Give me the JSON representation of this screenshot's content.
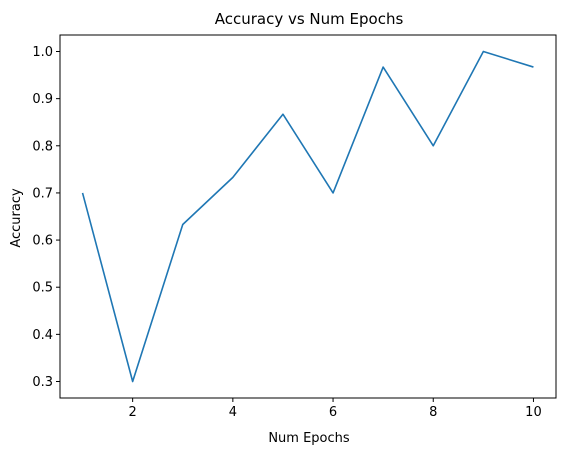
{
  "chart_data": {
    "type": "line",
    "title": "Accuracy vs Num Epochs",
    "xlabel": "Num Epochs",
    "ylabel": "Accuracy",
    "xlim": [
      0.55,
      10.45
    ],
    "ylim": [
      0.265,
      1.035
    ],
    "xticks": [
      2,
      4,
      6,
      8,
      10
    ],
    "yticks": [
      0.3,
      0.4,
      0.5,
      0.6,
      0.7,
      0.8,
      0.9,
      1.0
    ],
    "ytick_labels": [
      "0.3",
      "0.4",
      "0.5",
      "0.6",
      "0.7",
      "0.8",
      "0.9",
      "1.0"
    ],
    "grid": false,
    "series": [
      {
        "color": "#1f77b4",
        "x": [
          1,
          2,
          3,
          4,
          5,
          6,
          7,
          8,
          9,
          10
        ],
        "y": [
          0.7,
          0.3,
          0.633,
          0.733,
          0.867,
          0.7,
          0.967,
          0.8,
          1.0,
          0.967
        ]
      }
    ]
  }
}
